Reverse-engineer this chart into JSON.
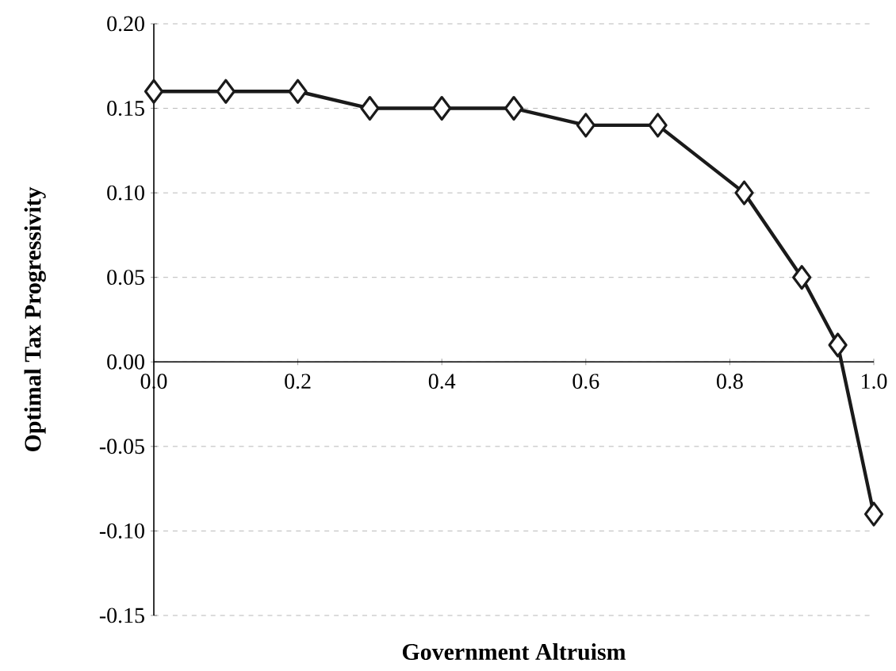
{
  "chart_data": {
    "type": "line",
    "xlabel": "Government Altruism",
    "ylabel": "Optimal Tax Progressivity",
    "x": [
      0.0,
      0.1,
      0.2,
      0.3,
      0.4,
      0.5,
      0.6,
      0.7,
      0.82,
      0.9,
      0.95,
      1.0
    ],
    "series": [
      {
        "color": "#1a1a1a",
        "values": [
          0.16,
          0.16,
          0.16,
          0.15,
          0.15,
          0.15,
          0.14,
          0.14,
          0.1,
          0.05,
          0.01,
          -0.09
        ]
      }
    ],
    "xlim": [
      0.0,
      1.0
    ],
    "xticks": [
      {
        "value": 0.0,
        "label": "0.0"
      },
      {
        "value": 0.2,
        "label": "0.2"
      },
      {
        "value": 0.4,
        "label": "0.4"
      },
      {
        "value": 0.6,
        "label": "0.6"
      },
      {
        "value": 0.8,
        "label": "0.8"
      },
      {
        "value": 1.0,
        "label": "1.0"
      }
    ],
    "ylim": [
      -0.15,
      0.2
    ],
    "yticks": [
      {
        "value": -0.15,
        "label": "-0.15"
      },
      {
        "value": -0.1,
        "label": "-0.10"
      },
      {
        "value": -0.05,
        "label": "-0.05"
      },
      {
        "value": 0.0,
        "label": "0.00"
      },
      {
        "value": 0.05,
        "label": "0.05"
      },
      {
        "value": 0.1,
        "label": "0.10"
      },
      {
        "value": 0.15,
        "label": "0.15"
      },
      {
        "value": 0.2,
        "label": "0.20"
      }
    ],
    "grid": "y",
    "marker": "diamond",
    "line_style": "solid"
  }
}
